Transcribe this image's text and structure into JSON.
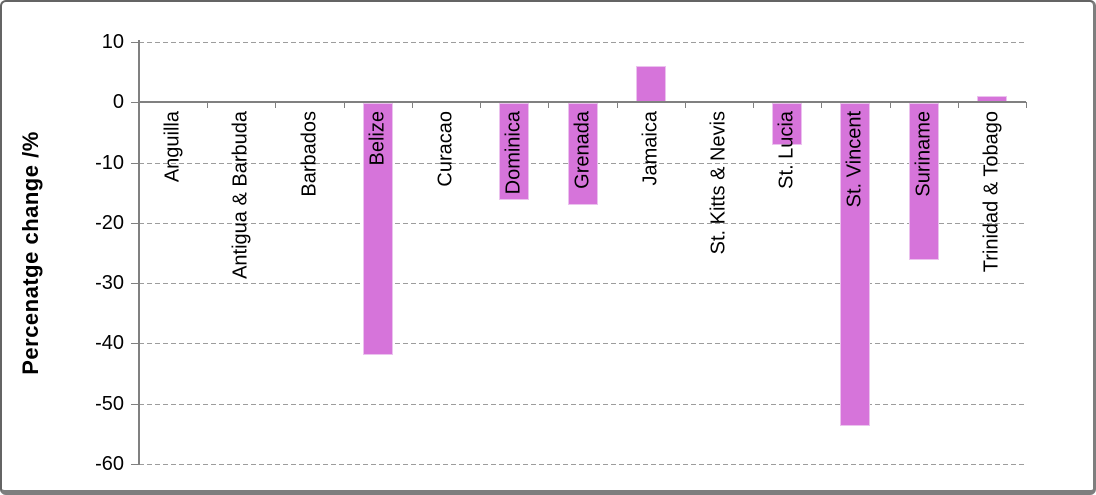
{
  "chart_data": {
    "type": "bar",
    "title": "",
    "ylabel": "Percenatge change /%",
    "xlabel": "",
    "categories": [
      "Anguilla",
      "Antigua & Barbuda",
      "Barbados",
      "Belize",
      "Curacao",
      "Dominica",
      "Grenada",
      "Jamaica",
      "St. Kitts & Nevis",
      "St. Lucia",
      "St. Vincent",
      "Suriname",
      "Trinidad & Tobago"
    ],
    "values": [
      0,
      0,
      0,
      -41.8,
      0,
      -16,
      -16.8,
      6,
      0,
      -7,
      -53.5,
      -26,
      1
    ],
    "ylim": [
      -60,
      10
    ],
    "yticks": [
      10,
      0,
      -10,
      -20,
      -30,
      -40,
      -50,
      -60
    ],
    "grid": "horizontal-dashed",
    "legend": "none",
    "colors": {
      "bar_fill": "#d674da",
      "bar_border": "#ebc2ee",
      "axis": "#808080",
      "gridline": "#9d9d9d",
      "text": "#000000"
    }
  }
}
